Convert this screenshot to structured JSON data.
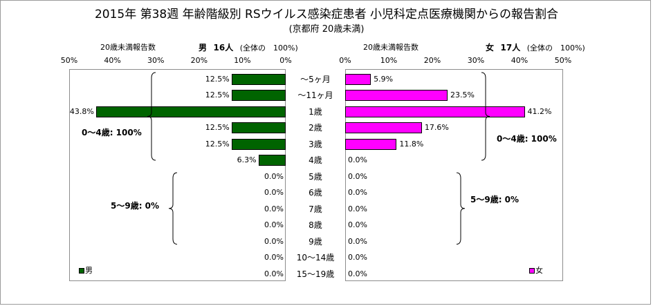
{
  "title": "2015年 第38週 年齢階級別 RSウイルス感染症患者 小児科定点医療機関からの報告割合",
  "subtitle": "(京都府 20歳未満)",
  "colors": {
    "male": "#006400",
    "female": "#ff00ff",
    "frame": "#8c8c8c"
  },
  "chart_data": {
    "type": "bar",
    "orientation": "horizontal",
    "layout": "population-pyramid",
    "categories": [
      "～5ヶ月",
      "～11ヶ月",
      "1歳",
      "2歳",
      "3歳",
      "4歳",
      "5歳",
      "6歳",
      "7歳",
      "8歳",
      "9歳",
      "10～14歳",
      "15～19歳"
    ],
    "xlim": [
      0,
      50
    ],
    "ticks": [
      50,
      40,
      30,
      20,
      10,
      0
    ],
    "tick_suffix": "%",
    "series": [
      {
        "name": "男",
        "side": "left",
        "axis_label": "20歳未満報告数",
        "header_name": "男",
        "header_count": "16人",
        "header_note": "(全体の　100%)",
        "values": [
          12.5,
          12.5,
          43.8,
          12.5,
          12.5,
          6.3,
          0.0,
          0.0,
          0.0,
          0.0,
          0.0,
          0.0,
          0.0
        ],
        "labels": [
          "12.5%",
          "12.5%",
          "43.8%",
          "12.5%",
          "12.5%",
          "6.3%",
          "0.0%",
          "0.0%",
          "0.0%",
          "0.0%",
          "0.0%",
          "0.0%",
          "0.0%"
        ],
        "group_labels": [
          {
            "text": "0～4歳: 100%",
            "from": 0,
            "to": 5
          },
          {
            "text": "5～9歳: 0%",
            "from": 6,
            "to": 10
          }
        ]
      },
      {
        "name": "女",
        "side": "right",
        "axis_label": "20歳未満報告数",
        "header_name": "女",
        "header_count": "17人",
        "header_note": "(全体の　100%)",
        "values": [
          5.9,
          23.5,
          41.2,
          17.6,
          11.8,
          0.0,
          0.0,
          0.0,
          0.0,
          0.0,
          0.0,
          0.0,
          0.0
        ],
        "labels": [
          "5.9%",
          "23.5%",
          "41.2%",
          "17.6%",
          "11.8%",
          "0.0%",
          "0.0%",
          "0.0%",
          "0.0%",
          "0.0%",
          "0.0%",
          "0.0%",
          "0.0%"
        ],
        "group_labels": [
          {
            "text": "0～4歳: 100%",
            "from": 0,
            "to": 5
          },
          {
            "text": "5～9歳: 0%",
            "from": 6,
            "to": 10
          }
        ]
      }
    ],
    "legend": [
      {
        "name": "男",
        "placement": "bottom-left of left plot"
      },
      {
        "name": "女",
        "placement": "bottom-right of right plot"
      }
    ]
  }
}
